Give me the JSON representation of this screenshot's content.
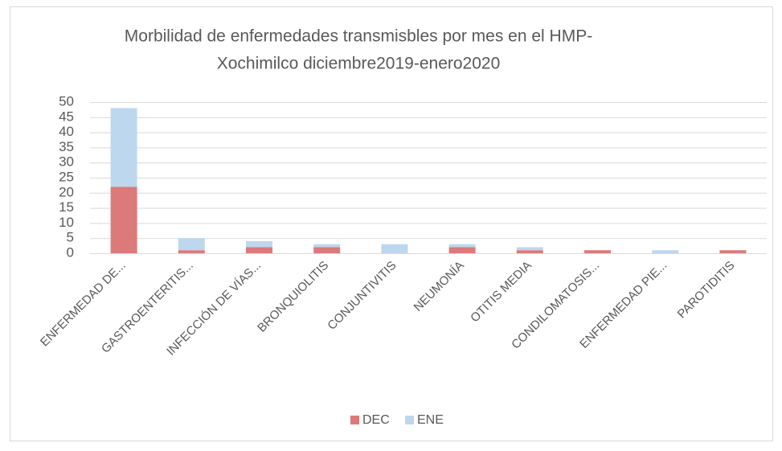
{
  "chart_data": {
    "type": "stacked_bar",
    "title_lines": [
      "Morbilidad de enfermedades transmisbles por mes en el HMP-",
      "Xochimilco diciembre2019-enero2020"
    ],
    "categories": [
      "ENFERMEDAD DE...",
      "GASTROENTERITIS...",
      "INFECCIÓN DE VÍAS...",
      "BRONQUIOLITIS",
      "CONJUNTIVITIS",
      "NEUMONÍA",
      "OTITIS MEDIA",
      "CONDILOMATOSIS...",
      "ENFERMEDAD PIE...",
      "PAROTIDITIS"
    ],
    "series": [
      {
        "name": "DEC",
        "color": "#dc7a7a",
        "values": [
          22,
          1,
          2,
          2,
          0,
          2,
          1,
          1,
          0,
          1
        ]
      },
      {
        "name": "ENE",
        "color": "#bdd7ee",
        "values": [
          26,
          4,
          2,
          1,
          3,
          1,
          1,
          0,
          1,
          0
        ]
      }
    ],
    "ylim": [
      0,
      50
    ],
    "yticks": [
      0,
      5,
      10,
      15,
      20,
      25,
      30,
      35,
      40,
      45,
      50
    ],
    "grid": true,
    "legend": "bottom"
  }
}
